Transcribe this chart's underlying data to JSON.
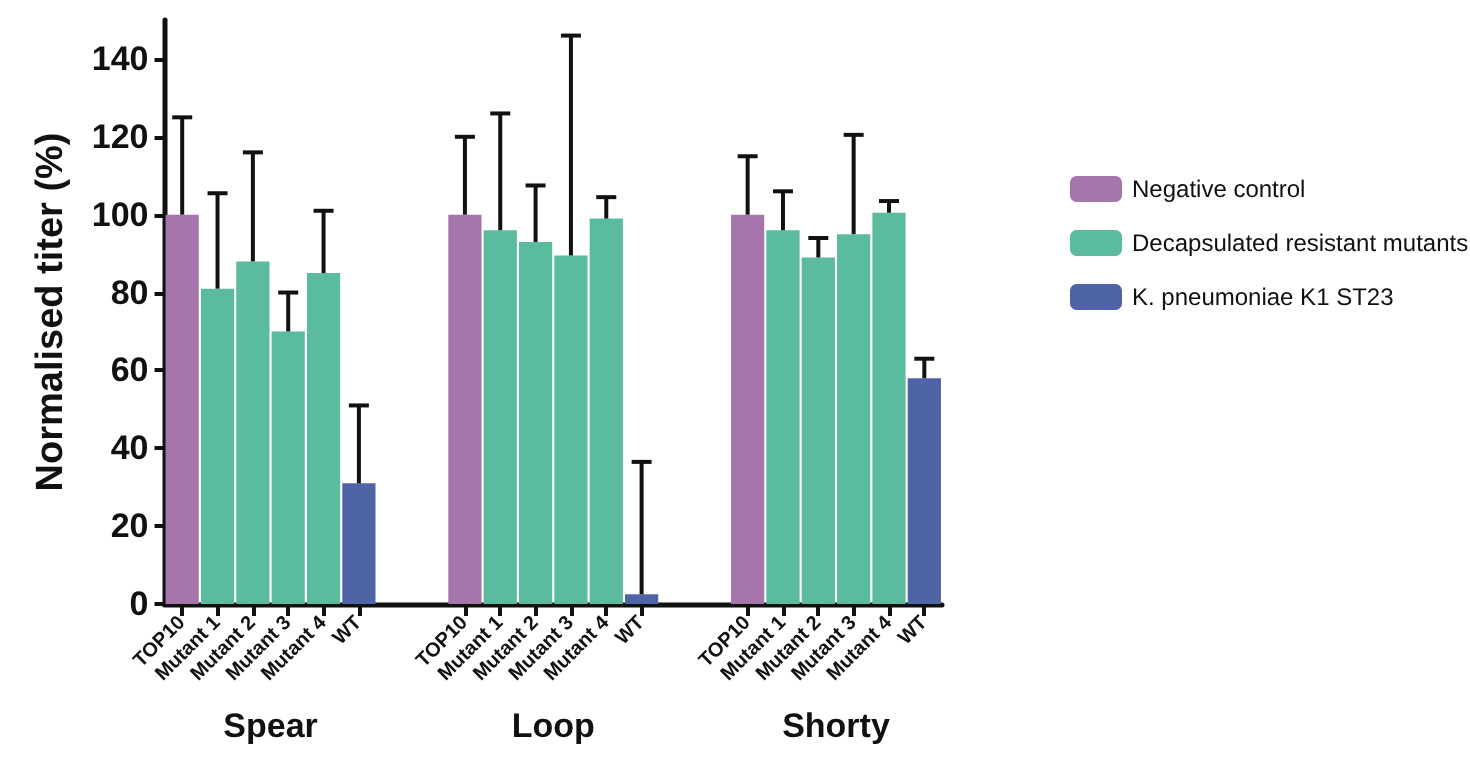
{
  "chart_data": {
    "type": "bar",
    "ylabel": "Normalised titer (%)",
    "categories": [
      "TOP10",
      "Mutant 1",
      "Mutant 2",
      "Mutant 3",
      "Mutant 4",
      "WT",
      null,
      null,
      "TOP10",
      "Mutant 1",
      "Mutant 2",
      "Mutant 3",
      "Mutant 4",
      "WT",
      null,
      null,
      "TOP10",
      "Mutant 1",
      "Mutant 2",
      "Mutant 3",
      "Mutant 4",
      "WT"
    ],
    "series": [
      {
        "name": "Negative control",
        "color": "#a675ab",
        "values": [
          100,
          null,
          null,
          null,
          null,
          null,
          null,
          null,
          100,
          null,
          null,
          null,
          null,
          null,
          null,
          null,
          100,
          null,
          null,
          null,
          null,
          null
        ],
        "errors": [
          [
            100,
            125
          ],
          null,
          null,
          null,
          null,
          null,
          null,
          null,
          [
            100,
            120
          ],
          null,
          null,
          null,
          null,
          null,
          null,
          null,
          [
            100,
            115
          ],
          null,
          null,
          null,
          null,
          null
        ]
      },
      {
        "name": "Decapsulated resistant mutants",
        "color": "#5bbb9f",
        "values": [
          null,
          81,
          88,
          70,
          85,
          null,
          null,
          null,
          null,
          96,
          93,
          89.5,
          99,
          null,
          null,
          null,
          null,
          96,
          89,
          95,
          100.5,
          null
        ],
        "errors": [
          null,
          [
            81,
            105.5
          ],
          [
            88,
            116
          ],
          [
            70,
            80
          ],
          [
            85,
            101
          ],
          null,
          null,
          null,
          null,
          [
            96,
            126
          ],
          [
            93,
            107.5
          ],
          [
            89.5,
            146
          ],
          [
            99,
            104.5
          ],
          null,
          null,
          null,
          null,
          [
            96,
            106
          ],
          [
            89,
            94
          ],
          [
            95,
            120.5
          ],
          [
            100.5,
            103.5
          ],
          null
        ]
      },
      {
        "name": "K. pneumoniae K1 ST23",
        "color": "#4f64a7",
        "values": [
          null,
          null,
          null,
          null,
          null,
          31,
          null,
          null,
          null,
          null,
          null,
          null,
          null,
          2.5,
          null,
          null,
          null,
          null,
          null,
          null,
          null,
          58
        ],
        "errors": [
          null,
          null,
          null,
          null,
          null,
          [
            31,
            51
          ],
          null,
          null,
          null,
          null,
          null,
          null,
          null,
          [
            2.5,
            36.5
          ],
          null,
          null,
          null,
          null,
          null,
          null,
          null,
          [
            58,
            63
          ]
        ]
      }
    ],
    "ylim": [
      0,
      150
    ],
    "yticks": [
      0,
      20,
      40,
      60,
      80,
      100,
      120,
      140
    ],
    "grid": false,
    "legend": "right",
    "annotations": [
      "Spear",
      "Loop",
      "Shorty"
    ]
  }
}
